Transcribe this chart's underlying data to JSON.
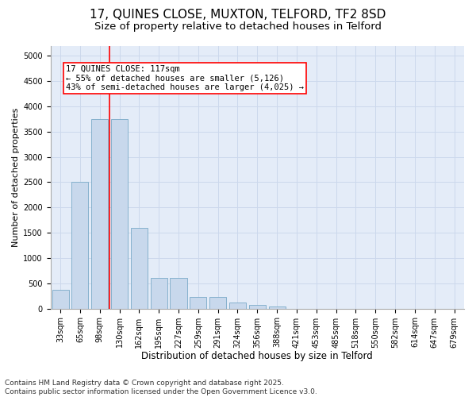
{
  "title1": "17, QUINES CLOSE, MUXTON, TELFORD, TF2 8SD",
  "title2": "Size of property relative to detached houses in Telford",
  "xlabel": "Distribution of detached houses by size in Telford",
  "ylabel": "Number of detached properties",
  "categories": [
    "33sqm",
    "65sqm",
    "98sqm",
    "130sqm",
    "162sqm",
    "195sqm",
    "227sqm",
    "259sqm",
    "291sqm",
    "324sqm",
    "356sqm",
    "388sqm",
    "421sqm",
    "453sqm",
    "485sqm",
    "518sqm",
    "550sqm",
    "582sqm",
    "614sqm",
    "647sqm",
    "679sqm"
  ],
  "values": [
    370,
    2500,
    3750,
    3750,
    1600,
    600,
    600,
    230,
    230,
    120,
    65,
    40,
    0,
    0,
    0,
    0,
    0,
    0,
    0,
    0,
    0
  ],
  "bar_color": "#c8d8ec",
  "bar_edge_color": "#7aaac8",
  "vline_color": "red",
  "vline_x_idx": 2.5,
  "annotation_text": "17 QUINES CLOSE: 117sqm\n← 55% of detached houses are smaller (5,126)\n43% of semi-detached houses are larger (4,025) →",
  "annotation_box_color": "white",
  "annotation_box_edge_color": "red",
  "ylim": [
    0,
    5200
  ],
  "yticks": [
    0,
    500,
    1000,
    1500,
    2000,
    2500,
    3000,
    3500,
    4000,
    4500,
    5000
  ],
  "grid_color": "#ccd8ec",
  "background_color": "#e4ecf8",
  "footnote": "Contains HM Land Registry data © Crown copyright and database right 2025.\nContains public sector information licensed under the Open Government Licence v3.0.",
  "title1_fontsize": 11,
  "title2_fontsize": 9.5,
  "xlabel_fontsize": 8.5,
  "ylabel_fontsize": 8,
  "tick_fontsize": 7,
  "annotation_fontsize": 7.5,
  "footnote_fontsize": 6.5
}
